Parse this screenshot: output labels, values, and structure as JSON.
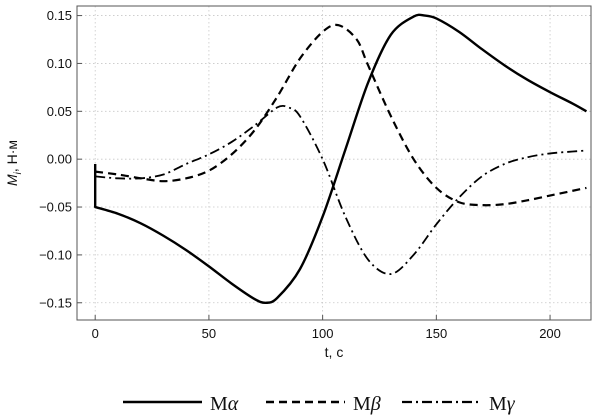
{
  "chart_data": {
    "type": "line",
    "title": "",
    "xlabel": "t, c",
    "ylabel": "Mi, Н·м",
    "ylabel_main": "M",
    "ylabel_sub": "i",
    "ylabel_rest": ", Н·м",
    "xlim": [
      -8,
      218
    ],
    "ylim": [
      -0.168,
      0.16
    ],
    "xticks": [
      0,
      50,
      100,
      150,
      200
    ],
    "yticks": [
      -0.15,
      -0.1,
      -0.05,
      0.0,
      0.05,
      0.1,
      0.15
    ],
    "xtick_labels": [
      "0",
      "50",
      "100",
      "150",
      "200"
    ],
    "ytick_labels": [
      "−0.15",
      "−0.10",
      "−0.05",
      "0.00",
      "0.05",
      "0.10",
      "0.15"
    ],
    "grid": true,
    "legend_position": "bottom",
    "series": [
      {
        "name": "Mα",
        "name_main": "M",
        "name_greek": "α",
        "style": "solid",
        "color": "#000000",
        "x": [
          0,
          0,
          0,
          10,
          20,
          30,
          40,
          50,
          60,
          70,
          75,
          80,
          90,
          100,
          110,
          120,
          130,
          140,
          145,
          150,
          160,
          170,
          180,
          190,
          200,
          210,
          216
        ],
        "y": [
          -0.005,
          -0.05,
          -0.05,
          -0.057,
          -0.067,
          -0.08,
          -0.095,
          -0.112,
          -0.13,
          -0.146,
          -0.15,
          -0.145,
          -0.115,
          -0.06,
          0.01,
          0.08,
          0.13,
          0.149,
          0.15,
          0.147,
          0.133,
          0.115,
          0.098,
          0.083,
          0.07,
          0.058,
          0.05
        ]
      },
      {
        "name": "Mβ",
        "name_main": "M",
        "name_greek": "β",
        "style": "dashed",
        "color": "#000000",
        "x": [
          0,
          10,
          20,
          30,
          40,
          50,
          60,
          70,
          80,
          90,
          100,
          107,
          115,
          120,
          130,
          140,
          150,
          160,
          170,
          180,
          190,
          200,
          210,
          216
        ],
        "y": [
          -0.013,
          -0.016,
          -0.02,
          -0.023,
          -0.02,
          -0.012,
          0.005,
          0.03,
          0.065,
          0.105,
          0.133,
          0.14,
          0.125,
          0.098,
          0.045,
          0.0,
          -0.03,
          -0.045,
          -0.048,
          -0.047,
          -0.043,
          -0.038,
          -0.033,
          -0.03
        ]
      },
      {
        "name": "Mγ",
        "name_main": "M",
        "name_greek": "γ",
        "style": "dashdot",
        "color": "#000000",
        "x": [
          0,
          10,
          20,
          30,
          40,
          50,
          60,
          70,
          80,
          85,
          90,
          100,
          110,
          120,
          130,
          140,
          150,
          160,
          170,
          180,
          190,
          200,
          210,
          216
        ],
        "y": [
          -0.018,
          -0.02,
          -0.02,
          -0.016,
          -0.005,
          0.005,
          0.018,
          0.035,
          0.054,
          0.054,
          0.045,
          0.0,
          -0.06,
          -0.105,
          -0.12,
          -0.1,
          -0.068,
          -0.04,
          -0.018,
          -0.005,
          0.002,
          0.006,
          0.008,
          0.009
        ]
      }
    ]
  }
}
